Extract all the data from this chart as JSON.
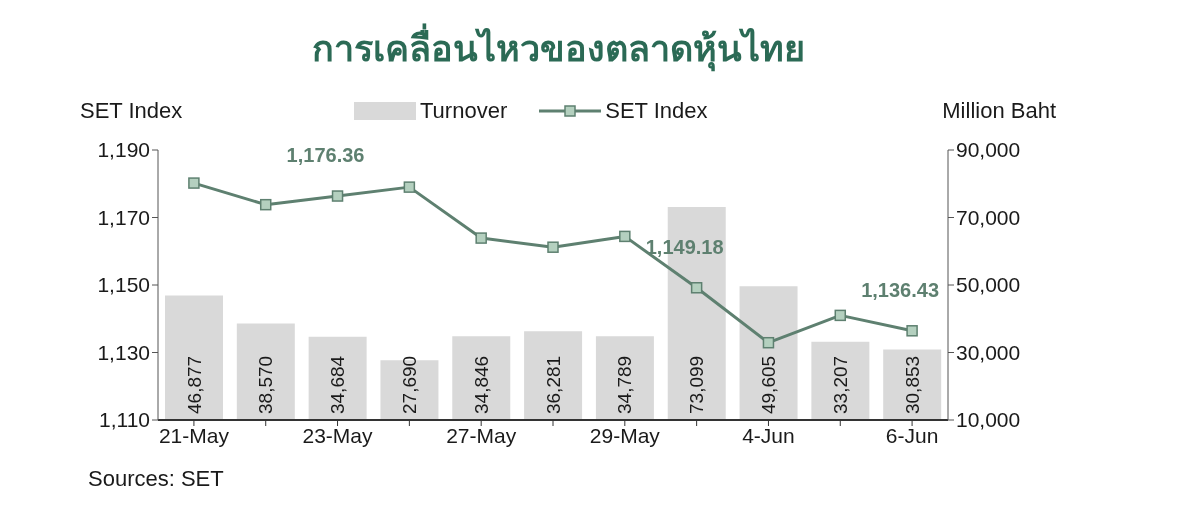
{
  "chart_data": {
    "type": "bar",
    "title": "การเคลื่อนไหวของตลาดหุ้นไทย",
    "ylabel": "SET Index",
    "y2label": "Million Baht",
    "annotations": [
      "Sources: SET"
    ],
    "categories": [
      "21-May",
      null,
      "23-May",
      null,
      "27-May",
      null,
      "29-May",
      null,
      "4-Jun",
      null,
      "6-Jun"
    ],
    "series": [
      {
        "name": "Turnover",
        "axis": "y2",
        "color": "#d9d9d9",
        "values": [
          46877,
          38570,
          34684,
          27690,
          34846,
          36281,
          34789,
          73099,
          49605,
          33207,
          30853
        ],
        "value_labels": [
          "46,877",
          "38,570",
          "34,684",
          "27,690",
          "34,846",
          "36,281",
          "34,789",
          "73,099",
          "49,605",
          "33,207",
          "30,853"
        ]
      },
      {
        "name": "SET Index",
        "type": "line",
        "axis": "y",
        "color": "#5e8070",
        "values": [
          1180.2,
          1173.8,
          1176.36,
          1179.0,
          1163.9,
          1161.2,
          1164.4,
          1149.18,
          1132.9,
          1141.0,
          1136.43
        ],
        "value_labels": [
          null,
          null,
          "1,176.36",
          null,
          null,
          null,
          null,
          "1,149.18",
          null,
          null,
          "1,136.43"
        ]
      }
    ],
    "ylim": [
      1110,
      1190
    ],
    "yticks": [
      {
        "value": 1110,
        "label": "1,110"
      },
      {
        "value": 1130,
        "label": "1,130"
      },
      {
        "value": 1150,
        "label": "1,150"
      },
      {
        "value": 1170,
        "label": "1,170"
      },
      {
        "value": 1190,
        "label": "1,190"
      }
    ],
    "y2lim": [
      10000,
      90000
    ],
    "y2ticks": [
      {
        "value": 10000,
        "label": "10,000"
      },
      {
        "value": 30000,
        "label": "30,000"
      },
      {
        "value": 50000,
        "label": "50,000"
      },
      {
        "value": 70000,
        "label": "70,000"
      },
      {
        "value": 90000,
        "label": "90,000"
      }
    ],
    "legend": "top",
    "marker": "square",
    "grid": false
  }
}
